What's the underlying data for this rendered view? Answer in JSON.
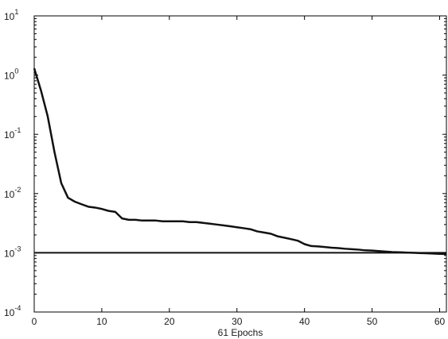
{
  "chart_data": {
    "type": "line",
    "title": "",
    "xlabel": "61 Epochs",
    "ylabel": "",
    "x_scale": "linear",
    "y_scale": "log",
    "xlim": [
      0,
      61
    ],
    "ylim": [
      0.0001,
      10
    ],
    "grid": false,
    "x_ticks": [
      {
        "value": 0,
        "label": "0"
      },
      {
        "value": 10,
        "label": "10"
      },
      {
        "value": 20,
        "label": "20"
      },
      {
        "value": 30,
        "label": "30"
      },
      {
        "value": 40,
        "label": "40"
      },
      {
        "value": 50,
        "label": "50"
      },
      {
        "value": 60,
        "label": "60"
      }
    ],
    "y_ticks": [
      {
        "value": 0.0001,
        "base": "10",
        "exp": "-4"
      },
      {
        "value": 0.001,
        "base": "10",
        "exp": "-3"
      },
      {
        "value": 0.01,
        "base": "10",
        "exp": "-2"
      },
      {
        "value": 0.1,
        "base": "10",
        "exp": "-1"
      },
      {
        "value": 1,
        "base": "10",
        "exp": "0"
      },
      {
        "value": 10,
        "base": "10",
        "exp": "1"
      }
    ],
    "series": [
      {
        "color": "#111111",
        "x": [
          0,
          1,
          2,
          3,
          4,
          5,
          6,
          7,
          8,
          9,
          10,
          11,
          12,
          13,
          14,
          15,
          16,
          17,
          18,
          19,
          20,
          21,
          22,
          23,
          24,
          25,
          26,
          27,
          28,
          29,
          30,
          31,
          32,
          33,
          34,
          35,
          36,
          37,
          38,
          39,
          40,
          41,
          42,
          43,
          44,
          45,
          46,
          47,
          48,
          49,
          50,
          51,
          52,
          53,
          54,
          55,
          56,
          57,
          58,
          59,
          60,
          61
        ],
        "y": [
          1.3,
          0.55,
          0.2,
          0.05,
          0.015,
          0.0085,
          0.0073,
          0.0066,
          0.006,
          0.0058,
          0.0055,
          0.0051,
          0.0049,
          0.0038,
          0.0036,
          0.0036,
          0.0035,
          0.0035,
          0.0035,
          0.0034,
          0.0034,
          0.0034,
          0.0034,
          0.0033,
          0.0033,
          0.0032,
          0.0031,
          0.003,
          0.0029,
          0.0028,
          0.0027,
          0.0026,
          0.0025,
          0.0023,
          0.0022,
          0.0021,
          0.0019,
          0.0018,
          0.0017,
          0.0016,
          0.0014,
          0.0013,
          0.00128,
          0.00125,
          0.00122,
          0.0012,
          0.00117,
          0.00115,
          0.00113,
          0.0011,
          0.00109,
          0.00107,
          0.00105,
          0.00103,
          0.00102,
          0.00101,
          0.001,
          0.00099,
          0.00098,
          0.00097,
          0.00096,
          0.00095
        ]
      }
    ],
    "reference_lines": [
      {
        "axis": "y",
        "value": 0.001,
        "color": "#111111"
      }
    ]
  }
}
